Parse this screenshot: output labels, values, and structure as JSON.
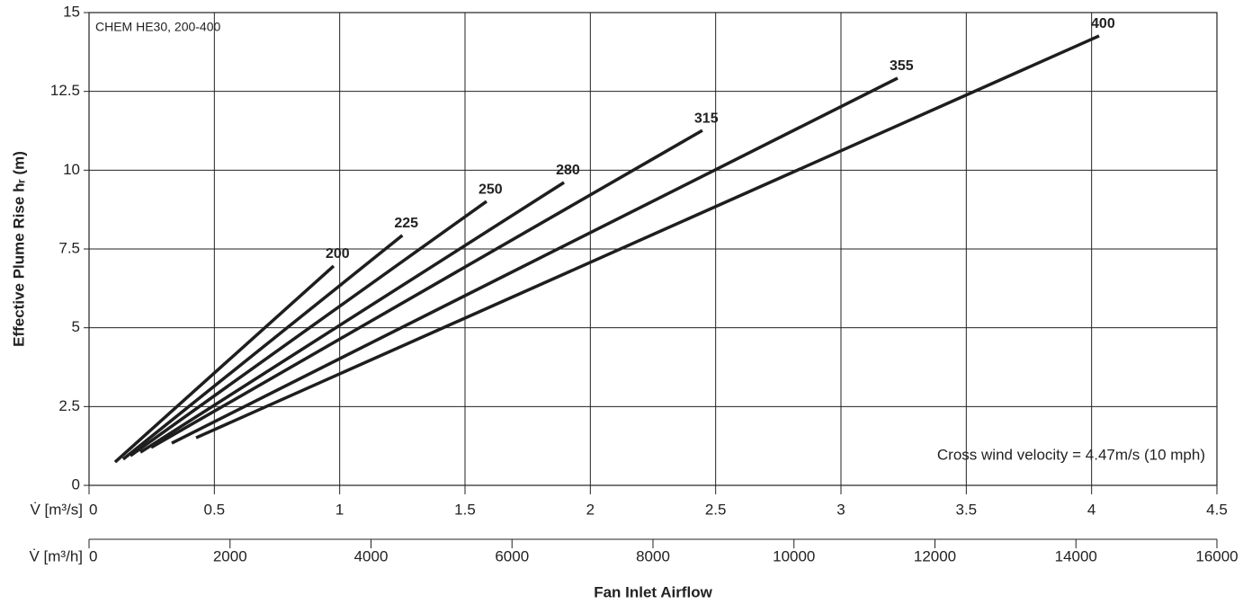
{
  "chart_data": {
    "type": "line",
    "x_label": "V̇ [m³/s]",
    "x2_label": "V̇ [m³/h]",
    "x_title": "Fan Inlet Airflow",
    "y_label": "Effective Plume Rise hᵣ (m)",
    "annotations": [
      "CHEM HE30, 200-400",
      "Cross wind velocity = 4.47m/s (10 mph)"
    ],
    "xlim": [
      0,
      4.5
    ],
    "xticks": [
      0,
      0.5,
      1,
      1.5,
      2,
      2.5,
      3,
      3.5,
      4,
      4.5
    ],
    "x2lim": [
      0,
      16000
    ],
    "x2ticks": [
      0,
      2000,
      4000,
      6000,
      8000,
      10000,
      12000,
      14000,
      16000
    ],
    "ylim": [
      0,
      15
    ],
    "yticks": [
      0,
      2.5,
      5,
      7.5,
      10,
      12.5,
      15
    ],
    "grid": true,
    "series": [
      {
        "name": "200",
        "color": "#1e1e1e",
        "x": [
          0.104,
          0.976
        ],
        "values": [
          0.74,
          6.96
        ]
      },
      {
        "name": "225",
        "color": "#1e1e1e",
        "x": [
          0.136,
          1.25
        ],
        "values": [
          0.83,
          7.93
        ]
      },
      {
        "name": "250",
        "color": "#1e1e1e",
        "x": [
          0.165,
          1.586
        ],
        "values": [
          0.94,
          9.01
        ]
      },
      {
        "name": "280",
        "color": "#1e1e1e",
        "x": [
          0.205,
          1.895
        ],
        "values": [
          1.05,
          9.61
        ]
      },
      {
        "name": "315",
        "color": "#1e1e1e",
        "x": [
          0.248,
          2.447
        ],
        "values": [
          1.2,
          11.26
        ]
      },
      {
        "name": "355",
        "color": "#1e1e1e",
        "x": [
          0.33,
          3.226
        ],
        "values": [
          1.34,
          12.92
        ]
      },
      {
        "name": "400",
        "color": "#1e1e1e",
        "x": [
          0.427,
          4.03
        ],
        "values": [
          1.51,
          14.26
        ]
      }
    ]
  }
}
